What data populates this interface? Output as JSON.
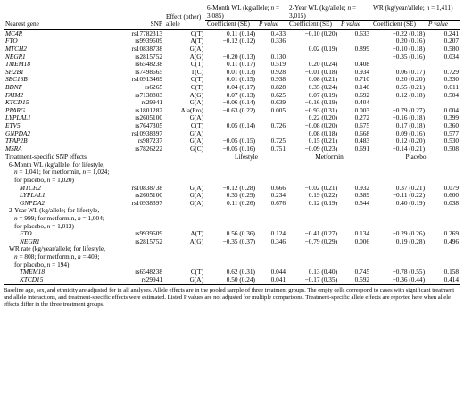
{
  "header": {
    "col_gene": "Nearest gene",
    "col_snp": "SNP",
    "col_allele": "Effect (other) allele",
    "group1": "6-Month WL (kg/allele; n = 3,085)",
    "group2": "2-Year WL (kg/allele; n = 3,015)",
    "group3": "WR (kg/year/allele; n = 1,411)",
    "sub_coef": "Coefficient (SE)",
    "sub_p": "P value"
  },
  "rows": [
    {
      "gene": "MC4R",
      "snp": "rs17782313",
      "allele": "C(T)",
      "c1": "0.11 (0.14)",
      "p1": "0.433",
      "c2": "−0.10 (0.20)",
      "p2": "0.633",
      "c3": "−0.22 (0.18)",
      "p3": "0.241"
    },
    {
      "gene": "FTO",
      "snp": "rs9939609",
      "allele": "A(T)",
      "c1": "−0.12 (0.12)",
      "p1": "0.336",
      "c2": "",
      "p2": "",
      "c3": "0.20 (0.16)",
      "p3": "0.207"
    },
    {
      "gene": "MTCH2",
      "snp": "rs10838738",
      "allele": "G(A)",
      "c1": "",
      "p1": "",
      "c2": "0.02 (0.19)",
      "p2": "0.899",
      "c3": "−0.10 (0.18)",
      "p3": "0.580"
    },
    {
      "gene": "NEGR1",
      "snp": "rs2815752",
      "allele": "A(G)",
      "c1": "−0.20 (0.13)",
      "p1": "0.130",
      "c2": "",
      "p2": "",
      "c3": "−0.35 (0.16)",
      "p3": "0.034"
    },
    {
      "gene": "TMEM18",
      "snp": "rs6548238",
      "allele": "C(T)",
      "c1": "0.11 (0.17)",
      "p1": "0.519",
      "c2": "0.20 (0.24)",
      "p2": "0.408",
      "c3": "",
      "p3": ""
    },
    {
      "gene": "SH2B1",
      "snp": "rs7498665",
      "allele": "T(C)",
      "c1": "0.01 (0.13)",
      "p1": "0.928",
      "c2": "−0.01 (0.18)",
      "p2": "0.934",
      "c3": "0.06 (0.17)",
      "p3": "0.729"
    },
    {
      "gene": "SEC16B",
      "snp": "rs10913469",
      "allele": "C(T)",
      "c1": "0.01 (0.15)",
      "p1": "0.938",
      "c2": "0.08 (0.21)",
      "p2": "0.710",
      "c3": "0.20 (0.20)",
      "p3": "0.330"
    },
    {
      "gene": "BDNF",
      "snp": "rs6265",
      "allele": "C(T)",
      "c1": "−0.04 (0.17)",
      "p1": "0.828",
      "c2": "0.35 (0.24)",
      "p2": "0.140",
      "c3": "0.55 (0.21)",
      "p3": "0.011"
    },
    {
      "gene": "FAIM2",
      "snp": "rs7138803",
      "allele": "A(G)",
      "c1": "0.07 (0.13)",
      "p1": "0.625",
      "c2": "−0.07 (0.19)",
      "p2": "0.692",
      "c3": "0.12 (0.18)",
      "p3": "0.504"
    },
    {
      "gene": "KTCD15",
      "snp": "rs29941",
      "allele": "G(A)",
      "c1": "−0.06 (0.14)",
      "p1": "0.639",
      "c2": "−0.16 (0.19)",
      "p2": "0.404",
      "c3": "",
      "p3": ""
    },
    {
      "gene": "PPARG",
      "snp": "rs1801282",
      "allele": "Ala(Pro)",
      "c1": "−0.63 (0.22)",
      "p1": "0.005",
      "c2": "−0.93 (0.31)",
      "p2": "0.003",
      "c3": "−0.79 (0.27)",
      "p3": "0.004"
    },
    {
      "gene": "LYPLAL1",
      "snp": "rs2605100",
      "allele": "G(A)",
      "c1": "",
      "p1": "",
      "c2": "0.22 (0.20)",
      "p2": "0.272",
      "c3": "−0.16 (0.18)",
      "p3": "0.399"
    },
    {
      "gene": "ETV5",
      "snp": "rs7647305",
      "allele": "C(T)",
      "c1": "0.05 (0.14)",
      "p1": "0.726",
      "c2": "−0.08 (0.20)",
      "p2": "0.675",
      "c3": "0.17 (0.18)",
      "p3": "0.360"
    },
    {
      "gene": "GNPDA2",
      "snp": "rs10938397",
      "allele": "G(A)",
      "c1": "",
      "p1": "",
      "c2": "0.08 (0.18)",
      "p2": "0.668",
      "c3": "0.09 (0.16)",
      "p3": "0.577"
    },
    {
      "gene": "TFAP2B",
      "snp": "rs987237",
      "allele": "G(A)",
      "c1": "−0.05 (0.15)",
      "p1": "0.725",
      "c2": "0.15 (0.21)",
      "p2": "0.483",
      "c3": "0.12 (0.20)",
      "p3": "0.530"
    },
    {
      "gene": "MSRA",
      "snp": "rs7826222",
      "allele": "G(C)",
      "c1": "−0.05 (0.16)",
      "p1": "0.751",
      "c2": "−0.09 (0.23)",
      "p2": "0.691",
      "c3": "−0.14 (0.21)",
      "p3": "0.508"
    }
  ],
  "treatment": {
    "title": "Treatment-specific SNP effects",
    "col1": "Lifestyle",
    "col2": "Metformin",
    "col3": "Placebo",
    "sections": [
      {
        "label_lines": [
          "6-Month WL (kg/allele; for lifestyle,",
          "n = 1,041; for metformin, n = 1,024;",
          "for placebo, n = 1,020)"
        ],
        "rows": [
          {
            "gene": "MTCH2",
            "snp": "rs10838738",
            "allele": "G(A)",
            "c1": "−0.12 (0.28)",
            "p1": "0.666",
            "c2": "−0.02 (0.21)",
            "p2": "0.932",
            "c3": "0.37 (0.21)",
            "p3": "0.079"
          },
          {
            "gene": "LYPLAL1",
            "snp": "rs2605100",
            "allele": "G(A)",
            "c1": "0.35 (0.29)",
            "p1": "0.234",
            "c2": "0.19 (0.22)",
            "p2": "0.389",
            "c3": "−0.11 (0.22)",
            "p3": "0.600"
          },
          {
            "gene": "GNPDA2",
            "snp": "rs10938397",
            "allele": "G(A)",
            "c1": "0.11 (0.26)",
            "p1": "0.676",
            "c2": "0.12 (0.19)",
            "p2": "0.544",
            "c3": "0.40 (0.19)",
            "p3": "0.038"
          }
        ]
      },
      {
        "label_lines": [
          "2-Year WL (kg/allele; for lifestyle,",
          "n = 999; for metformin, n = 1,004;",
          "for placebo, n = 1,012)"
        ],
        "rows": [
          {
            "gene": "FTO",
            "snp": "rs9939609",
            "allele": "A(T)",
            "c1": "0.56 (0.36)",
            "p1": "0.124",
            "c2": "−0.41 (0.27)",
            "p2": "0.134",
            "c3": "−0.29 (0.26)",
            "p3": "0.269"
          },
          {
            "gene": "NEGR1",
            "snp": "rs2815752",
            "allele": "A(G)",
            "c1": "−0.35 (0.37)",
            "p1": "0.346",
            "c2": "−0.79 (0.29)",
            "p2": "0.006",
            "c3": "0.19 (0.28)",
            "p3": "0.496"
          }
        ]
      },
      {
        "label_lines": [
          "WR rate (kg/year/allele; for lifestyle,",
          "n = 808; for metformin, n = 409;",
          "for placebo, n = 194)"
        ],
        "rows": [
          {
            "gene": "TMEM18",
            "snp": "rs6548238",
            "allele": "C(T)",
            "c1": "0.62 (0.31)",
            "p1": "0.044",
            "c2": "0.13 (0.40)",
            "p2": "0.745",
            "c3": "−0.78 (0.55)",
            "p3": "0.158"
          },
          {
            "gene": "KTCD15",
            "snp": "rs29941",
            "allele": "G(A)",
            "c1": "0.50 (0.24)",
            "p1": "0.041",
            "c2": "−0.17 (0.35)",
            "p2": "0.592",
            "c3": "−0.36 (0.44)",
            "p3": "0.414"
          }
        ]
      }
    ]
  },
  "footnote": "Baseline age, sex, and ethnicity are adjusted for in all analyses. Allele effects are in the pooled sample of three treatment groups. The empty cells correspond to cases with significant treatment and allele interactions, and treatment-specific effects were estimated. Listed P values are not adjusted for multiple comparisons. Treatment-specific allele effects are reported here when allele effects differ in the three treatment groups."
}
